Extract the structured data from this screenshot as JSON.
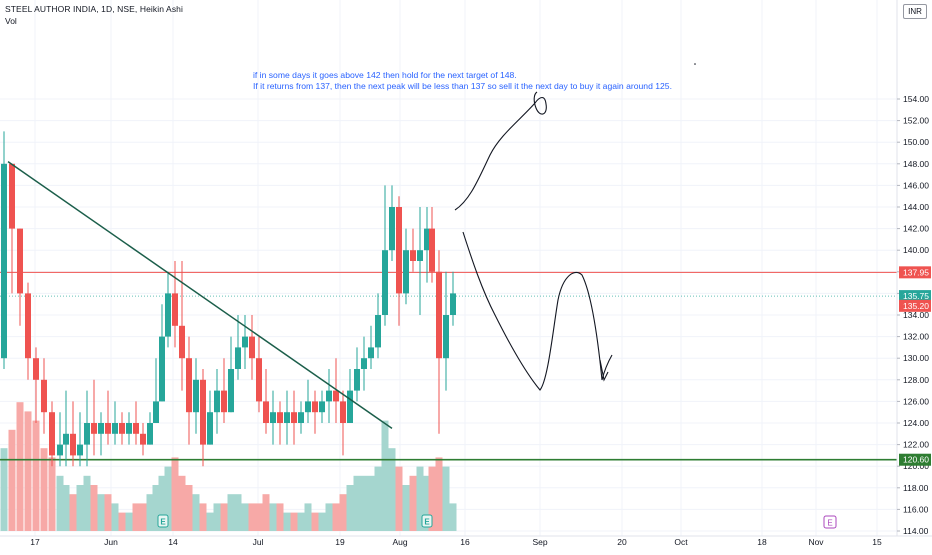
{
  "legend": {
    "title": "STEEL AUTHOR INDIA, 1D, NSE, Heikin Ashi",
    "volume_label": "Vol",
    "currency": "INR"
  },
  "colors": {
    "up": "#26a69a",
    "down": "#ef5350",
    "vol_up": "#a5d6cf",
    "vol_down": "#f7a9a7",
    "trendline": "#1b5e4a",
    "resistance": "#ef5350",
    "support": "#2e7d32",
    "current": "#26a69a",
    "annotation": "#2962ff",
    "earnings": "#26a69a",
    "event_future": "#ab47bc"
  },
  "annotation": {
    "line1": "if in some days it goes above 142 then hold for the next target of 148.",
    "line2": "If it returns from 137, then the next peak will be less than 137 so sell it the next day to buy it again around 125."
  },
  "chart_data": {
    "type": "candlestick",
    "title": "STEEL AUTHOR INDIA, 1D, NSE, Heikin Ashi",
    "y_axis": {
      "min": 114,
      "max": 154,
      "ticks": [
        "114.00",
        "116.00",
        "118.00",
        "120.00",
        "122.00",
        "124.00",
        "126.00",
        "128.00",
        "130.00",
        "132.00",
        "134.00",
        "136.00",
        "138.00",
        "140.00",
        "142.00",
        "144.00",
        "146.00",
        "148.00",
        "150.00",
        "152.00",
        "154.00"
      ]
    },
    "x_axis": {
      "ticks": [
        {
          "label": "17",
          "x": 35
        },
        {
          "label": "Jun",
          "x": 111
        },
        {
          "label": "14",
          "x": 173
        },
        {
          "label": "Jul",
          "x": 258
        },
        {
          "label": "19",
          "x": 340
        },
        {
          "label": "Aug",
          "x": 400
        },
        {
          "label": "16",
          "x": 465
        },
        {
          "label": "Sep",
          "x": 540
        },
        {
          "label": "20",
          "x": 622
        },
        {
          "label": "Oct",
          "x": 681
        },
        {
          "label": "18",
          "x": 762
        },
        {
          "label": "Nov",
          "x": 816
        },
        {
          "label": "15",
          "x": 877
        }
      ]
    },
    "price_levels": [
      {
        "name": "resistance",
        "value": 137.95,
        "label": "137.95"
      },
      {
        "name": "support",
        "value": 120.6,
        "label": "120.60"
      }
    ],
    "last_price": {
      "value": 135.75,
      "label": "135.75"
    },
    "last_open": {
      "value": 135.2,
      "label": "135.20"
    },
    "candles": [
      {
        "o": 130,
        "h": 151,
        "l": 129,
        "c": 148,
        "v": 9,
        "x": 4
      },
      {
        "o": 148,
        "h": 148,
        "l": 136,
        "c": 142,
        "v": 11,
        "x": 12
      },
      {
        "o": 142,
        "h": 142,
        "l": 133,
        "c": 136,
        "v": 14,
        "x": 20
      },
      {
        "o": 136,
        "h": 137,
        "l": 128,
        "c": 130,
        "v": 13,
        "x": 28
      },
      {
        "o": 130,
        "h": 131,
        "l": 124,
        "c": 128,
        "v": 12,
        "x": 36
      },
      {
        "o": 128,
        "h": 130,
        "l": 123,
        "c": 125,
        "v": 9,
        "x": 44
      },
      {
        "o": 125,
        "h": 126,
        "l": 120,
        "c": 121,
        "v": 8,
        "x": 52
      },
      {
        "o": 121,
        "h": 125,
        "l": 120,
        "c": 122,
        "v": 6,
        "x": 60
      },
      {
        "o": 122,
        "h": 127,
        "l": 120,
        "c": 123,
        "v": 5,
        "x": 66
      },
      {
        "o": 123,
        "h": 126,
        "l": 120,
        "c": 121,
        "v": 4,
        "x": 73
      },
      {
        "o": 121,
        "h": 125,
        "l": 120,
        "c": 122,
        "v": 5,
        "x": 80
      },
      {
        "o": 122,
        "h": 127,
        "l": 120,
        "c": 124,
        "v": 6,
        "x": 87
      },
      {
        "o": 124,
        "h": 128,
        "l": 121,
        "c": 123,
        "v": 5,
        "x": 94
      },
      {
        "o": 123,
        "h": 125,
        "l": 121,
        "c": 124,
        "v": 4,
        "x": 101
      },
      {
        "o": 124,
        "h": 127,
        "l": 122,
        "c": 123,
        "v": 4,
        "x": 108
      },
      {
        "o": 123,
        "h": 126,
        "l": 122,
        "c": 124,
        "v": 3,
        "x": 115
      },
      {
        "o": 124,
        "h": 125,
        "l": 122,
        "c": 123,
        "v": 2,
        "x": 122
      },
      {
        "o": 123,
        "h": 125,
        "l": 122,
        "c": 124,
        "v": 2,
        "x": 129
      },
      {
        "o": 124,
        "h": 126,
        "l": 122,
        "c": 123,
        "v": 3,
        "x": 136
      },
      {
        "o": 123,
        "h": 124,
        "l": 121,
        "c": 122,
        "v": 3,
        "x": 143
      },
      {
        "o": 122,
        "h": 125,
        "l": 122,
        "c": 124,
        "v": 4,
        "x": 150
      },
      {
        "o": 124,
        "h": 130,
        "l": 124,
        "c": 126,
        "v": 5,
        "x": 156
      },
      {
        "o": 126,
        "h": 135,
        "l": 126,
        "c": 132,
        "v": 6,
        "x": 162
      },
      {
        "o": 132,
        "h": 138,
        "l": 131,
        "c": 136,
        "v": 7,
        "x": 168
      },
      {
        "o": 136,
        "h": 139,
        "l": 131,
        "c": 133,
        "v": 8,
        "x": 175
      },
      {
        "o": 133,
        "h": 139,
        "l": 127,
        "c": 130,
        "v": 6,
        "x": 182
      },
      {
        "o": 130,
        "h": 132,
        "l": 122,
        "c": 125,
        "v": 5,
        "x": 189
      },
      {
        "o": 125,
        "h": 130,
        "l": 123,
        "c": 128,
        "v": 4,
        "x": 196
      },
      {
        "o": 128,
        "h": 129,
        "l": 120,
        "c": 122,
        "v": 3,
        "x": 203
      },
      {
        "o": 122,
        "h": 127,
        "l": 122,
        "c": 125,
        "v": 2,
        "x": 210
      },
      {
        "o": 125,
        "h": 129,
        "l": 123,
        "c": 127,
        "v": 3,
        "x": 217
      },
      {
        "o": 127,
        "h": 130,
        "l": 124,
        "c": 125,
        "v": 3,
        "x": 224
      },
      {
        "o": 125,
        "h": 132,
        "l": 125,
        "c": 129,
        "v": 4,
        "x": 231
      },
      {
        "o": 129,
        "h": 134,
        "l": 128,
        "c": 131,
        "v": 4,
        "x": 238
      },
      {
        "o": 131,
        "h": 134,
        "l": 129,
        "c": 132,
        "v": 3,
        "x": 245
      },
      {
        "o": 132,
        "h": 134,
        "l": 128,
        "c": 130,
        "v": 3,
        "x": 252
      },
      {
        "o": 130,
        "h": 132,
        "l": 125,
        "c": 126,
        "v": 3,
        "x": 259
      },
      {
        "o": 126,
        "h": 129,
        "l": 123,
        "c": 124,
        "v": 4,
        "x": 266
      },
      {
        "o": 124,
        "h": 127,
        "l": 122,
        "c": 125,
        "v": 3,
        "x": 273
      },
      {
        "o": 125,
        "h": 126,
        "l": 122,
        "c": 124,
        "v": 3,
        "x": 280
      },
      {
        "o": 124,
        "h": 127,
        "l": 122,
        "c": 125,
        "v": 2,
        "x": 287
      },
      {
        "o": 125,
        "h": 127,
        "l": 122,
        "c": 124,
        "v": 2,
        "x": 294
      },
      {
        "o": 124,
        "h": 126,
        "l": 123,
        "c": 125,
        "v": 2,
        "x": 301
      },
      {
        "o": 125,
        "h": 128,
        "l": 124,
        "c": 126,
        "v": 3,
        "x": 308
      },
      {
        "o": 126,
        "h": 127,
        "l": 123,
        "c": 125,
        "v": 2,
        "x": 315
      },
      {
        "o": 125,
        "h": 127,
        "l": 124,
        "c": 126,
        "v": 2,
        "x": 322
      },
      {
        "o": 126,
        "h": 129,
        "l": 124,
        "c": 127,
        "v": 3,
        "x": 329
      },
      {
        "o": 127,
        "h": 130,
        "l": 124,
        "c": 126,
        "v": 3,
        "x": 336
      },
      {
        "o": 126,
        "h": 127,
        "l": 121,
        "c": 124,
        "v": 4,
        "x": 343
      },
      {
        "o": 124,
        "h": 129,
        "l": 124,
        "c": 127,
        "v": 5,
        "x": 350
      },
      {
        "o": 127,
        "h": 131,
        "l": 126,
        "c": 129,
        "v": 6,
        "x": 357
      },
      {
        "o": 129,
        "h": 132,
        "l": 127,
        "c": 130,
        "v": 6,
        "x": 364
      },
      {
        "o": 130,
        "h": 133,
        "l": 129,
        "c": 131,
        "v": 6,
        "x": 371
      },
      {
        "o": 131,
        "h": 136,
        "l": 130,
        "c": 134,
        "v": 7,
        "x": 378
      },
      {
        "o": 134,
        "h": 146,
        "l": 133,
        "c": 140,
        "v": 12,
        "x": 385
      },
      {
        "o": 140,
        "h": 146,
        "l": 139,
        "c": 144,
        "v": 9,
        "x": 392
      },
      {
        "o": 144,
        "h": 145,
        "l": 133,
        "c": 136,
        "v": 7,
        "x": 399
      },
      {
        "o": 136,
        "h": 142,
        "l": 135,
        "c": 140,
        "v": 5,
        "x": 406
      },
      {
        "o": 140,
        "h": 142,
        "l": 138,
        "c": 139,
        "v": 6,
        "x": 413
      },
      {
        "o": 139,
        "h": 144,
        "l": 134,
        "c": 140,
        "v": 7,
        "x": 420
      },
      {
        "o": 140,
        "h": 144,
        "l": 137,
        "c": 142,
        "v": 6,
        "x": 427
      },
      {
        "o": 142,
        "h": 144,
        "l": 137,
        "c": 138,
        "v": 7,
        "x": 432
      },
      {
        "o": 138,
        "h": 140,
        "l": 123,
        "c": 130,
        "v": 8,
        "x": 439
      },
      {
        "o": 130,
        "h": 138,
        "l": 127,
        "c": 134,
        "v": 7,
        "x": 446
      },
      {
        "o": 134,
        "h": 138,
        "l": 133,
        "c": 136,
        "v": 3,
        "x": 453
      }
    ],
    "trendline": {
      "from": {
        "x": 8,
        "y": 148.2
      },
      "to": {
        "x": 392,
        "y": 123.5
      }
    },
    "earnings_markers": [
      {
        "x": 163,
        "label": "E"
      },
      {
        "x": 427,
        "label": "E"
      }
    ],
    "future_event": {
      "x": 830,
      "label": "E"
    }
  }
}
